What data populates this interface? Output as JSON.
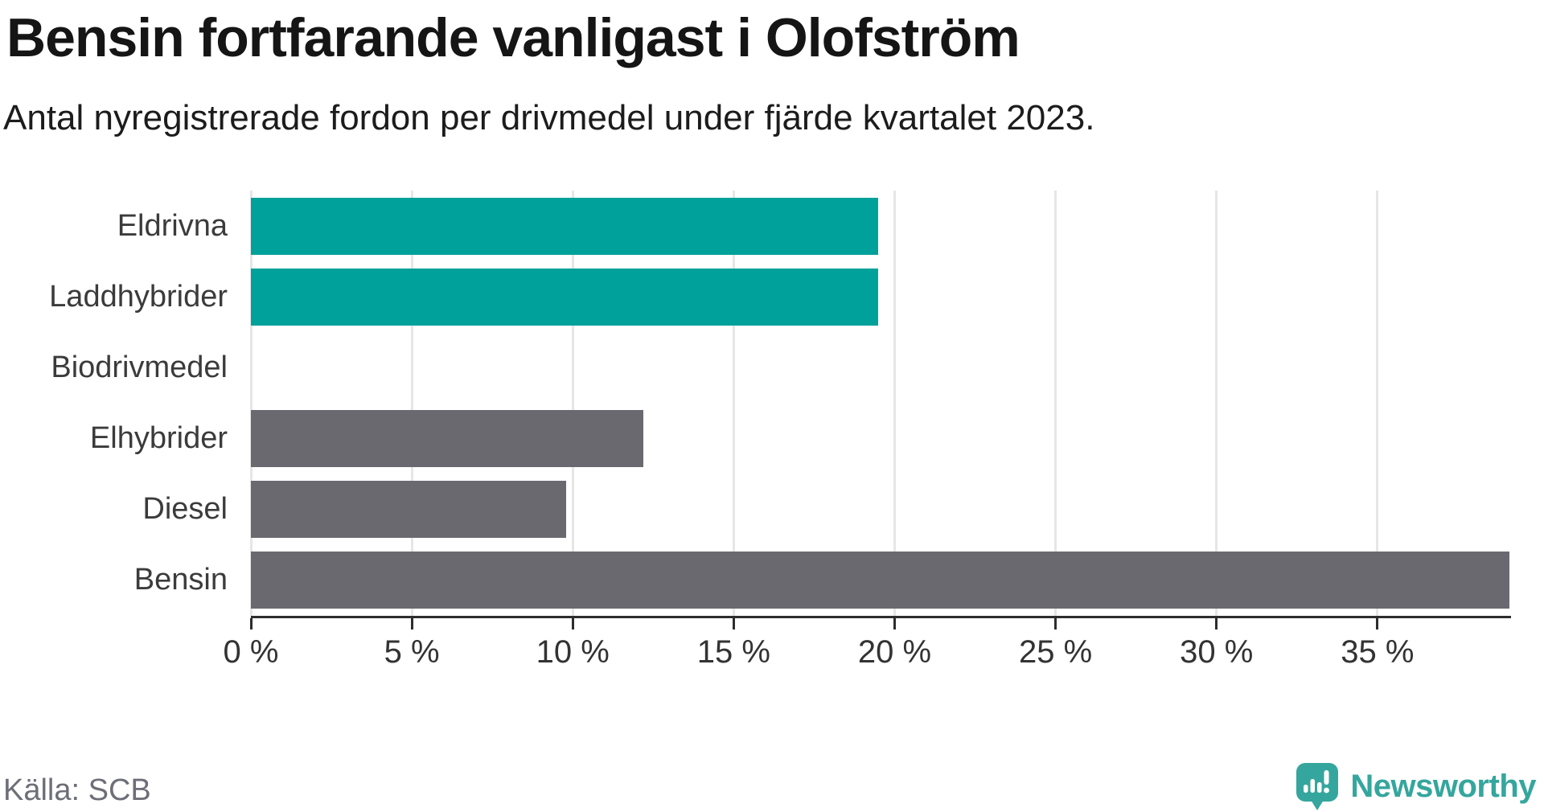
{
  "title": "Bensin fortfarande vanligast i Olofström",
  "subtitle": "Antal nyregistrerade fordon per drivmedel under fjärde kvartalet 2023.",
  "footer": {
    "source": "Källa: SCB",
    "brand": "Newsworthy"
  },
  "colors": {
    "teal_bar": "#00a19a",
    "gray_bar": "#6b6970",
    "gridline": "#e6e6e6",
    "axis": "#2d2d2d",
    "brand_teal": "#35a69d"
  },
  "icons": {
    "brand_icon": "newsworthy-speech-bubble-chart-icon"
  },
  "chart_data": {
    "type": "bar",
    "orientation": "horizontal",
    "title": "Bensin fortfarande vanligast i Olofström",
    "subtitle": "Antal nyregistrerade fordon per drivmedel under fjärde kvartalet 2023.",
    "categories": [
      "Eldrivna",
      "Laddhybrider",
      "Biodrivmedel",
      "Elhybrider",
      "Diesel",
      "Bensin"
    ],
    "values": [
      19.5,
      19.5,
      0,
      12.2,
      9.8,
      39.1
    ],
    "unit": "%",
    "bar_colors": [
      "#00a19a",
      "#00a19a",
      "#00a19a",
      "#6b6970",
      "#6b6970",
      "#6b6970"
    ],
    "xlim": [
      0,
      39.1
    ],
    "x_ticks": [
      0,
      5,
      10,
      15,
      20,
      25,
      30,
      35
    ],
    "x_tick_labels": [
      "0 %",
      "5 %",
      "10 %",
      "15 %",
      "20 %",
      "25 %",
      "30 %",
      "35 %"
    ],
    "grid": "vertical",
    "legend": "none",
    "source": "Källa: SCB"
  }
}
